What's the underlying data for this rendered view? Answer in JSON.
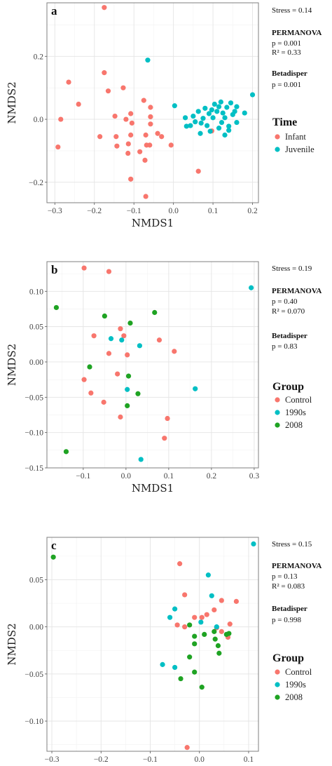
{
  "colors": {
    "Infant": "#F8766D",
    "Juvenile": "#00BFC4",
    "Control": "#F8766D",
    "1990s": "#00BFC4",
    "2008": "#1FA323"
  },
  "chart_data": [
    {
      "type": "scatter",
      "panel": "a",
      "xlabel": "NMDS1",
      "ylabel": "NMDS2",
      "xlim": [
        -0.32,
        0.215
      ],
      "ylim": [
        -0.265,
        0.37
      ],
      "xticks": [
        -0.3,
        -0.2,
        -0.1,
        0.0,
        0.1,
        0.2
      ],
      "xtick_labels": [
        "−0.3",
        "−0.2",
        "−0.1",
        "0.0",
        "0.1",
        "0.2"
      ],
      "yticks": [
        -0.2,
        0.0,
        0.2
      ],
      "ytick_labels": [
        "−0.2",
        "0.0",
        "0.2"
      ],
      "grid": true,
      "legend": {
        "title": "Time",
        "position": "right",
        "entries": [
          "Infant",
          "Juvenile"
        ]
      },
      "annotations": {
        "stress": "Stress = 0.14",
        "permanova_title": "PERMANOVA",
        "permanova_p": "p = 0.001",
        "permanova_r2": "R² = 0.33",
        "betadisper_title": "Betadisper",
        "betadisper_p": "p = 0.001"
      },
      "series": [
        {
          "name": "Infant",
          "color": "#F8766D",
          "points": [
            [
              -0.175,
              0.355
            ],
            [
              -0.175,
              0.148
            ],
            [
              -0.265,
              0.118
            ],
            [
              -0.165,
              0.09
            ],
            [
              -0.127,
              0.1
            ],
            [
              -0.24,
              0.048
            ],
            [
              -0.285,
              0.0
            ],
            [
              -0.292,
              -0.088
            ],
            [
              -0.186,
              -0.055
            ],
            [
              -0.148,
              0.01
            ],
            [
              -0.12,
              0.0
            ],
            [
              -0.108,
              0.018
            ],
            [
              -0.105,
              -0.012
            ],
            [
              -0.145,
              -0.055
            ],
            [
              -0.143,
              -0.085
            ],
            [
              -0.114,
              -0.078
            ],
            [
              -0.108,
              -0.05
            ],
            [
              -0.075,
              0.06
            ],
            [
              -0.058,
              0.038
            ],
            [
              -0.058,
              0.008
            ],
            [
              -0.058,
              -0.015
            ],
            [
              -0.07,
              -0.05
            ],
            [
              -0.068,
              -0.082
            ],
            [
              -0.115,
              -0.108
            ],
            [
              -0.085,
              -0.103
            ],
            [
              -0.072,
              -0.13
            ],
            [
              -0.108,
              -0.19
            ],
            [
              -0.07,
              -0.245
            ],
            [
              -0.04,
              -0.045
            ],
            [
              -0.06,
              -0.082
            ],
            [
              -0.03,
              -0.055
            ],
            [
              -0.006,
              -0.082
            ],
            [
              0.063,
              -0.165
            ],
            [
              0.097,
              -0.037
            ]
          ]
        },
        {
          "name": "Juvenile",
          "color": "#00BFC4",
          "points": [
            [
              -0.065,
              0.188
            ],
            [
              0.003,
              0.043
            ],
            [
              0.03,
              0.005
            ],
            [
              0.033,
              -0.022
            ],
            [
              0.043,
              -0.02
            ],
            [
              0.05,
              0.01
            ],
            [
              0.055,
              -0.008
            ],
            [
              0.063,
              0.025
            ],
            [
              0.068,
              -0.045
            ],
            [
              0.07,
              -0.012
            ],
            [
              0.075,
              0.003
            ],
            [
              0.08,
              0.035
            ],
            [
              0.085,
              -0.02
            ],
            [
              0.09,
              0.018
            ],
            [
              0.093,
              -0.038
            ],
            [
              0.1,
              0.005
            ],
            [
              0.104,
              0.048
            ],
            [
              0.11,
              0.025
            ],
            [
              0.115,
              -0.028
            ],
            [
              0.115,
              0.04
            ],
            [
              0.12,
              0.055
            ],
            [
              0.122,
              -0.01
            ],
            [
              0.125,
              0.02
            ],
            [
              0.13,
              0.005
            ],
            [
              0.13,
              -0.05
            ],
            [
              0.135,
              0.038
            ],
            [
              0.14,
              -0.022
            ],
            [
              0.145,
              0.052
            ],
            [
              0.15,
              0.015
            ],
            [
              0.155,
              0.025
            ],
            [
              0.16,
              -0.01
            ],
            [
              0.16,
              0.04
            ],
            [
              0.18,
              0.02
            ],
            [
              0.2,
              0.078
            ],
            [
              0.14,
              -0.035
            ],
            [
              0.097,
              0.03
            ]
          ]
        }
      ]
    },
    {
      "type": "scatter",
      "panel": "b",
      "xlabel": "NMDS1",
      "ylabel": "NMDS2",
      "xlim": [
        -0.185,
        0.31
      ],
      "ylim": [
        -0.15,
        0.142
      ],
      "xticks": [
        -0.1,
        0.0,
        0.1,
        0.2,
        0.3
      ],
      "xtick_labels": [
        "−0.1",
        "0.0",
        "0.1",
        "0.2",
        "0.3"
      ],
      "yticks": [
        -0.15,
        -0.1,
        -0.05,
        0.0,
        0.05,
        0.1
      ],
      "ytick_labels": [
        "−0.15",
        "−0.10",
        "−0.05",
        "0.00",
        "0.05",
        "0.10"
      ],
      "grid": true,
      "legend": {
        "title": "Group",
        "position": "right",
        "entries": [
          "Control",
          "1990s",
          "2008"
        ]
      },
      "annotations": {
        "stress": "Stress = 0.19",
        "permanova_title": "PERMANOVA",
        "permanova_p": "p = 0.40",
        "permanova_r2": "R² = 0.070",
        "betadisper_title": "Betadisper",
        "betadisper_p": "p = 0.83"
      },
      "series": [
        {
          "name": "Control",
          "color": "#F8766D",
          "points": [
            [
              -0.098,
              0.133
            ],
            [
              -0.04,
              0.128
            ],
            [
              -0.075,
              0.037
            ],
            [
              -0.013,
              0.047
            ],
            [
              -0.005,
              0.037
            ],
            [
              0.003,
              0.01
            ],
            [
              -0.04,
              0.012
            ],
            [
              0.078,
              0.031
            ],
            [
              0.113,
              0.015
            ],
            [
              -0.02,
              -0.017
            ],
            [
              -0.098,
              -0.025
            ],
            [
              -0.082,
              -0.044
            ],
            [
              -0.052,
              -0.057
            ],
            [
              -0.013,
              -0.078
            ],
            [
              0.09,
              -0.108
            ],
            [
              0.097,
              -0.08
            ]
          ]
        },
        {
          "name": "1990s",
          "color": "#00BFC4",
          "points": [
            [
              0.293,
              0.105
            ],
            [
              -0.035,
              0.033
            ],
            [
              -0.01,
              0.031
            ],
            [
              0.032,
              0.023
            ],
            [
              0.003,
              -0.039
            ],
            [
              0.162,
              -0.038
            ],
            [
              0.035,
              -0.138
            ]
          ]
        },
        {
          "name": "2008",
          "color": "#1FA323",
          "points": [
            [
              -0.163,
              0.077
            ],
            [
              0.067,
              0.07
            ],
            [
              -0.05,
              0.065
            ],
            [
              0.01,
              0.055
            ],
            [
              -0.085,
              -0.007
            ],
            [
              0.006,
              -0.02
            ],
            [
              0.028,
              -0.045
            ],
            [
              0.003,
              -0.062
            ],
            [
              -0.14,
              -0.127
            ]
          ]
        }
      ]
    },
    {
      "type": "scatter",
      "panel": "c",
      "xlabel": "NMDS1",
      "ylabel": "NMDS2",
      "xlim": [
        -0.31,
        0.12
      ],
      "ylim": [
        -0.132,
        0.095
      ],
      "xticks": [
        -0.3,
        -0.2,
        -0.1,
        0.0,
        0.1
      ],
      "xtick_labels": [
        "−0.3",
        "−0.2",
        "−0.1",
        "0.0",
        "0.1"
      ],
      "yticks": [
        -0.1,
        -0.05,
        0.0,
        0.05
      ],
      "ytick_labels": [
        "−0.10",
        "−0.05",
        "0.00",
        "0.05"
      ],
      "grid": true,
      "legend": {
        "title": "Group",
        "position": "right",
        "entries": [
          "Control",
          "1990s",
          "2008"
        ]
      },
      "annotations": {
        "stress": "Stress = 0.15",
        "permanova_title": "PERMANOVA",
        "permanova_p": "p = 0.13",
        "permanova_r2": "R² = 0.083",
        "betadisper_title": "Betadisper",
        "betadisper_p": "p = 0.998"
      },
      "series": [
        {
          "name": "Control",
          "color": "#F8766D",
          "points": [
            [
              -0.04,
              0.067
            ],
            [
              -0.03,
              0.034
            ],
            [
              -0.01,
              0.01
            ],
            [
              0.005,
              0.01
            ],
            [
              0.015,
              0.013
            ],
            [
              0.03,
              0.018
            ],
            [
              0.045,
              0.028
            ],
            [
              0.075,
              0.027
            ],
            [
              0.035,
              -0.001
            ],
            [
              0.045,
              -0.005
            ],
            [
              0.062,
              0.003
            ],
            [
              0.058,
              -0.011
            ],
            [
              -0.045,
              0.002
            ],
            [
              -0.03,
              0.0
            ],
            [
              -0.025,
              -0.128
            ]
          ]
        },
        {
          "name": "1990s",
          "color": "#00BFC4",
          "points": [
            [
              0.11,
              0.088
            ],
            [
              0.018,
              0.055
            ],
            [
              0.025,
              0.033
            ],
            [
              -0.05,
              0.019
            ],
            [
              -0.06,
              0.01
            ],
            [
              0.003,
              0.005
            ],
            [
              0.035,
              0.0
            ],
            [
              -0.075,
              -0.04
            ],
            [
              -0.05,
              -0.043
            ]
          ]
        },
        {
          "name": "2008",
          "color": "#1FA323",
          "points": [
            [
              -0.297,
              0.074
            ],
            [
              -0.02,
              0.002
            ],
            [
              -0.01,
              -0.01
            ],
            [
              0.01,
              -0.008
            ],
            [
              0.03,
              -0.005
            ],
            [
              -0.01,
              -0.018
            ],
            [
              0.032,
              -0.013
            ],
            [
              0.06,
              -0.007
            ],
            [
              0.055,
              -0.008
            ],
            [
              -0.02,
              -0.032
            ],
            [
              0.038,
              -0.02
            ],
            [
              -0.01,
              -0.048
            ],
            [
              0.04,
              -0.028
            ],
            [
              -0.038,
              -0.055
            ],
            [
              0.005,
              -0.064
            ]
          ]
        }
      ]
    }
  ]
}
